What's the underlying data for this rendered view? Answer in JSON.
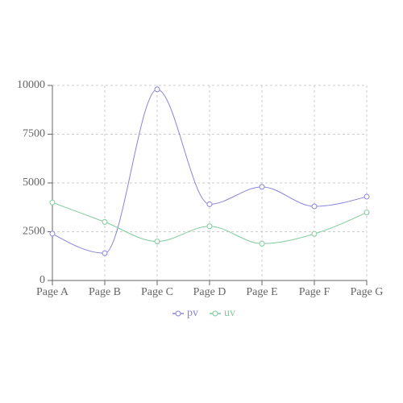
{
  "chart_data": {
    "type": "line",
    "categories": [
      "Page A",
      "Page B",
      "Page C",
      "Page D",
      "Page E",
      "Page F",
      "Page G"
    ],
    "series": [
      {
        "name": "pv",
        "color": "#8884d8",
        "values": [
          2400,
          1398,
          9800,
          3908,
          4800,
          3800,
          4300
        ]
      },
      {
        "name": "uv",
        "color": "#82ca9d",
        "values": [
          4000,
          3000,
          2000,
          2780,
          1890,
          2390,
          3490
        ]
      }
    ],
    "ylim": [
      0,
      10000
    ],
    "yticks": [
      0,
      2500,
      5000,
      7500,
      10000
    ],
    "grid": true,
    "legend": "bottom"
  }
}
